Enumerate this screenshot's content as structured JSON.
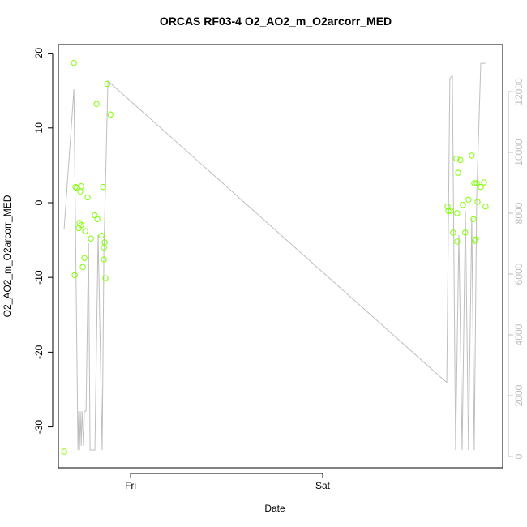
{
  "chart_data": {
    "type": "scatter",
    "title": "ORCAS RF03-4 O2_AO2_m_O2arcorr_MED",
    "xlabel": "Date",
    "ylabel": "O2_AO2_m_O2arcorr_MED",
    "xlim": [
      -0.376,
      1.937
    ],
    "xticks": [
      {
        "value": 0,
        "label": "Fri"
      },
      {
        "value": 1,
        "label": "Sat"
      }
    ],
    "ylim": [
      -35.47,
      21.15
    ],
    "yticks": [
      -30,
      -20,
      -10,
      0,
      10,
      20
    ],
    "y2lim": [
      -373,
      13547
    ],
    "y2ticks": [
      0,
      2000,
      4000,
      6000,
      8000,
      10000,
      12000
    ],
    "y2color": "#bebebe",
    "series": [
      {
        "type": "line",
        "axis": "y2",
        "color": "#bebebe",
        "x": [
          -0.346,
          -0.295,
          -0.274,
          -0.27,
          -0.266,
          -0.262,
          -0.257,
          -0.253,
          -0.245,
          -0.241,
          -0.232,
          -0.219,
          -0.211,
          -0.186,
          -0.169,
          -0.148,
          -0.139,
          -0.118,
          1.646,
          1.662,
          1.675,
          1.692,
          1.709,
          1.726,
          1.743,
          1.759,
          1.776,
          1.789,
          1.802,
          1.823,
          1.848
        ],
        "values": [
          7490,
          12080,
          210,
          1490,
          210,
          1490,
          350,
          1490,
          350,
          1490,
          1490,
          7010,
          210,
          210,
          7280,
          210,
          6750,
          12350,
          2430,
          12430,
          12530,
          210,
          7280,
          210,
          8080,
          210,
          7810,
          210,
          8610,
          12930,
          12930
        ]
      },
      {
        "type": "scatter",
        "color": "#7fff00",
        "x": [
          -0.346,
          -0.295,
          -0.291,
          -0.287,
          -0.279,
          -0.27,
          -0.266,
          -0.262,
          -0.257,
          -0.257,
          -0.249,
          -0.241,
          -0.236,
          -0.224,
          -0.207,
          -0.186,
          -0.177,
          -0.173,
          -0.152,
          -0.143,
          -0.139,
          -0.139,
          -0.135,
          -0.131,
          -0.122,
          -0.105,
          1.65,
          1.654,
          1.667,
          1.679,
          1.696,
          1.7,
          1.7,
          1.705,
          1.717,
          1.73,
          1.742,
          1.759,
          1.776,
          1.785,
          1.789,
          1.793,
          1.797,
          1.802,
          1.806,
          1.823,
          1.84,
          1.848
        ],
        "values": [
          -33.3,
          18.7,
          -9.7,
          2.1,
          2.0,
          -3.4,
          -2.7,
          1.5,
          2.2,
          -3.0,
          -8.6,
          -7.4,
          -3.8,
          0.7,
          -4.8,
          -1.7,
          13.2,
          -2.2,
          -4.4,
          2.1,
          -7.6,
          -6.0,
          -5.3,
          -10.1,
          15.9,
          11.8,
          -0.5,
          -1.1,
          -1.1,
          -4.0,
          5.9,
          -1.4,
          -5.2,
          4.0,
          5.7,
          -0.3,
          -4.0,
          0.4,
          6.3,
          -2.2,
          2.6,
          -5.1,
          -4.9,
          2.6,
          0.1,
          2.1,
          2.7,
          -0.5
        ]
      }
    ]
  }
}
